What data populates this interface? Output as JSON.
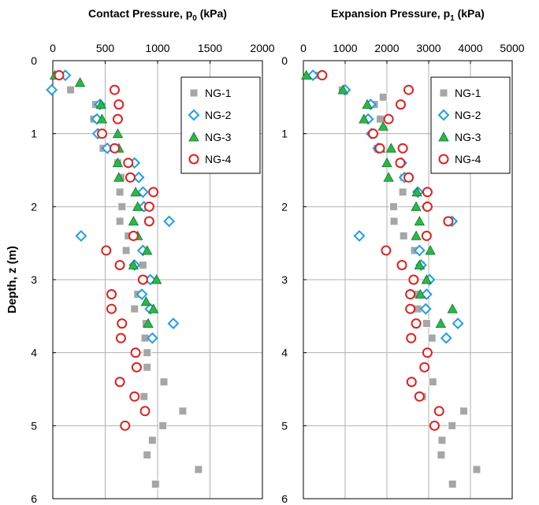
{
  "chart_data": [
    {
      "type": "scatter",
      "title": "Contact Pressure, p",
      "title_sub": "0",
      "title_unit": " (kPa)",
      "ylabel": "Depth, z (m)",
      "xlim": [
        0,
        2000
      ],
      "ylim": [
        6,
        0
      ],
      "xticks": [
        "0",
        "500",
        "1000",
        "1500",
        "2000"
      ],
      "yticks": [
        "0",
        "1",
        "2",
        "3",
        "4",
        "5",
        "6"
      ],
      "grid": true,
      "legend_position": "top-right",
      "series": [
        {
          "name": "NG-1",
          "marker": "square",
          "color": "#a6a6a6",
          "points": [
            [
              110,
              0.2
            ],
            [
              170,
              0.4
            ],
            [
              410,
              0.6
            ],
            [
              390,
              0.8
            ],
            [
              480,
              1.0
            ],
            [
              480,
              1.2
            ],
            [
              620,
              1.4
            ],
            [
              650,
              1.6
            ],
            [
              640,
              1.8
            ],
            [
              660,
              2.0
            ],
            [
              640,
              2.2
            ],
            [
              720,
              2.4
            ],
            [
              700,
              2.6
            ],
            [
              860,
              2.8
            ],
            [
              900,
              3.0
            ],
            [
              810,
              3.2
            ],
            [
              780,
              3.4
            ],
            [
              890,
              3.6
            ],
            [
              880,
              3.8
            ],
            [
              900,
              4.0
            ],
            [
              900,
              4.2
            ],
            [
              1060,
              4.4
            ],
            [
              870,
              4.6
            ],
            [
              1240,
              4.8
            ],
            [
              1050,
              5.0
            ],
            [
              950,
              5.2
            ],
            [
              900,
              5.4
            ],
            [
              1390,
              5.6
            ],
            [
              980,
              5.8
            ]
          ]
        },
        {
          "name": "NG-2",
          "marker": "diamond",
          "color": "#1f9ee8",
          "points": [
            [
              120,
              0.2
            ],
            [
              -10,
              0.4
            ],
            [
              450,
              0.6
            ],
            [
              420,
              0.8
            ],
            [
              430,
              1.0
            ],
            [
              520,
              1.2
            ],
            [
              780,
              1.4
            ],
            [
              820,
              1.6
            ],
            [
              860,
              1.8
            ],
            [
              870,
              2.0
            ],
            [
              1110,
              2.2
            ],
            [
              270,
              2.4
            ],
            [
              860,
              2.6
            ],
            [
              780,
              2.8
            ],
            [
              930,
              3.0
            ],
            [
              850,
              3.2
            ],
            [
              930,
              3.4
            ],
            [
              1150,
              3.6
            ],
            [
              950,
              3.8
            ]
          ]
        },
        {
          "name": "NG-3",
          "marker": "triangle",
          "color": "#2fb54a",
          "points": [
            [
              20,
              0.2
            ],
            [
              260,
              0.3
            ],
            [
              460,
              0.6
            ],
            [
              470,
              0.8
            ],
            [
              620,
              1.0
            ],
            [
              630,
              1.2
            ],
            [
              620,
              1.4
            ],
            [
              630,
              1.6
            ],
            [
              790,
              1.8
            ],
            [
              810,
              2.0
            ],
            [
              770,
              2.2
            ],
            [
              810,
              2.4
            ],
            [
              900,
              2.6
            ],
            [
              770,
              2.8
            ],
            [
              990,
              3.0
            ],
            [
              890,
              3.3
            ],
            [
              960,
              3.4
            ],
            [
              910,
              3.6
            ]
          ]
        },
        {
          "name": "NG-4",
          "marker": "circle",
          "color": "#e02020",
          "points": [
            [
              60,
              0.2
            ],
            [
              590,
              0.4
            ],
            [
              630,
              0.6
            ],
            [
              620,
              0.8
            ],
            [
              470,
              1.0
            ],
            [
              590,
              1.2
            ],
            [
              720,
              1.4
            ],
            [
              740,
              1.6
            ],
            [
              960,
              1.8
            ],
            [
              920,
              2.0
            ],
            [
              920,
              2.2
            ],
            [
              770,
              2.4
            ],
            [
              510,
              2.6
            ],
            [
              640,
              2.8
            ],
            [
              860,
              3.0
            ],
            [
              560,
              3.2
            ],
            [
              560,
              3.4
            ],
            [
              660,
              3.6
            ],
            [
              650,
              3.8
            ],
            [
              790,
              4.0
            ],
            [
              800,
              4.2
            ],
            [
              640,
              4.4
            ],
            [
              780,
              4.6
            ],
            [
              880,
              4.8
            ],
            [
              690,
              5.0
            ]
          ]
        }
      ]
    },
    {
      "type": "scatter",
      "title": "Expansion Pressure, p",
      "title_sub": "1",
      "title_unit": " (kPa)",
      "ylabel": "",
      "xlim": [
        0,
        5000
      ],
      "ylim": [
        6,
        0
      ],
      "xticks": [
        "0",
        "1000",
        "2000",
        "3000",
        "4000",
        "5000"
      ],
      "yticks": [
        "0",
        "1",
        "2",
        "3",
        "4",
        "5",
        "6"
      ],
      "grid": true,
      "legend_position": "top-right",
      "series": [
        {
          "name": "NG-1",
          "marker": "square",
          "color": "#a6a6a6",
          "points": [
            [
              260,
              0.2
            ],
            [
              930,
              0.4
            ],
            [
              1910,
              0.5
            ],
            [
              1700,
              0.6
            ],
            [
              1840,
              0.8
            ],
            [
              1680,
              1.0
            ],
            [
              1770,
              1.2
            ],
            [
              2300,
              1.4
            ],
            [
              2400,
              1.6
            ],
            [
              2380,
              1.8
            ],
            [
              2160,
              2.0
            ],
            [
              2170,
              2.2
            ],
            [
              2400,
              2.4
            ],
            [
              2660,
              2.6
            ],
            [
              2820,
              2.8
            ],
            [
              3000,
              3.0
            ],
            [
              2700,
              3.2
            ],
            [
              2740,
              3.4
            ],
            [
              2950,
              3.6
            ],
            [
              3080,
              3.8
            ],
            [
              2960,
              4.0
            ],
            [
              2920,
              4.2
            ],
            [
              3100,
              4.4
            ],
            [
              2850,
              4.6
            ],
            [
              3840,
              4.8
            ],
            [
              3560,
              5.0
            ],
            [
              3320,
              5.2
            ],
            [
              3300,
              5.4
            ],
            [
              4150,
              5.6
            ],
            [
              3570,
              5.8
            ]
          ]
        },
        {
          "name": "NG-2",
          "marker": "diamond",
          "color": "#1f9ee8",
          "points": [
            [
              230,
              0.2
            ],
            [
              1000,
              0.4
            ],
            [
              1610,
              0.6
            ],
            [
              1550,
              0.8
            ],
            [
              1630,
              1.0
            ],
            [
              1790,
              1.2
            ],
            [
              2350,
              1.4
            ],
            [
              2420,
              1.6
            ],
            [
              2740,
              1.8
            ],
            [
              2960,
              2.0
            ],
            [
              3560,
              2.2
            ],
            [
              1340,
              2.4
            ],
            [
              2780,
              2.6
            ],
            [
              2820,
              2.8
            ],
            [
              3020,
              3.0
            ],
            [
              2950,
              3.2
            ],
            [
              2930,
              3.4
            ],
            [
              3700,
              3.6
            ],
            [
              3420,
              3.8
            ]
          ]
        },
        {
          "name": "NG-3",
          "marker": "triangle",
          "color": "#2fb54a",
          "points": [
            [
              70,
              0.2
            ],
            [
              950,
              0.4
            ],
            [
              1530,
              0.6
            ],
            [
              1450,
              0.8
            ],
            [
              1910,
              0.9
            ],
            [
              1840,
              1.2
            ],
            [
              2100,
              1.2
            ],
            [
              2000,
              1.4
            ],
            [
              2040,
              1.6
            ],
            [
              2720,
              1.8
            ],
            [
              2700,
              2.0
            ],
            [
              2780,
              2.2
            ],
            [
              2700,
              2.4
            ],
            [
              3040,
              2.6
            ],
            [
              2780,
              2.8
            ],
            [
              2950,
              3.0
            ],
            [
              2800,
              3.2
            ],
            [
              3570,
              3.4
            ],
            [
              3290,
              3.6
            ]
          ]
        },
        {
          "name": "NG-4",
          "marker": "circle",
          "color": "#e02020",
          "points": [
            [
              450,
              0.2
            ],
            [
              2520,
              0.4
            ],
            [
              2330,
              0.6
            ],
            [
              2040,
              0.8
            ],
            [
              1670,
              1.0
            ],
            [
              1830,
              1.2
            ],
            [
              2380,
              1.2
            ],
            [
              2320,
              1.4
            ],
            [
              2520,
              1.6
            ],
            [
              2970,
              1.8
            ],
            [
              2970,
              2.0
            ],
            [
              3470,
              2.2
            ],
            [
              2950,
              2.4
            ],
            [
              1980,
              2.6
            ],
            [
              2360,
              2.8
            ],
            [
              2640,
              3.0
            ],
            [
              2560,
              3.2
            ],
            [
              2560,
              3.4
            ],
            [
              2700,
              3.6
            ],
            [
              2580,
              3.8
            ],
            [
              2970,
              4.0
            ],
            [
              2900,
              4.2
            ],
            [
              2590,
              4.4
            ],
            [
              2780,
              4.6
            ],
            [
              3250,
              4.8
            ],
            [
              3140,
              5.0
            ]
          ]
        }
      ]
    }
  ]
}
